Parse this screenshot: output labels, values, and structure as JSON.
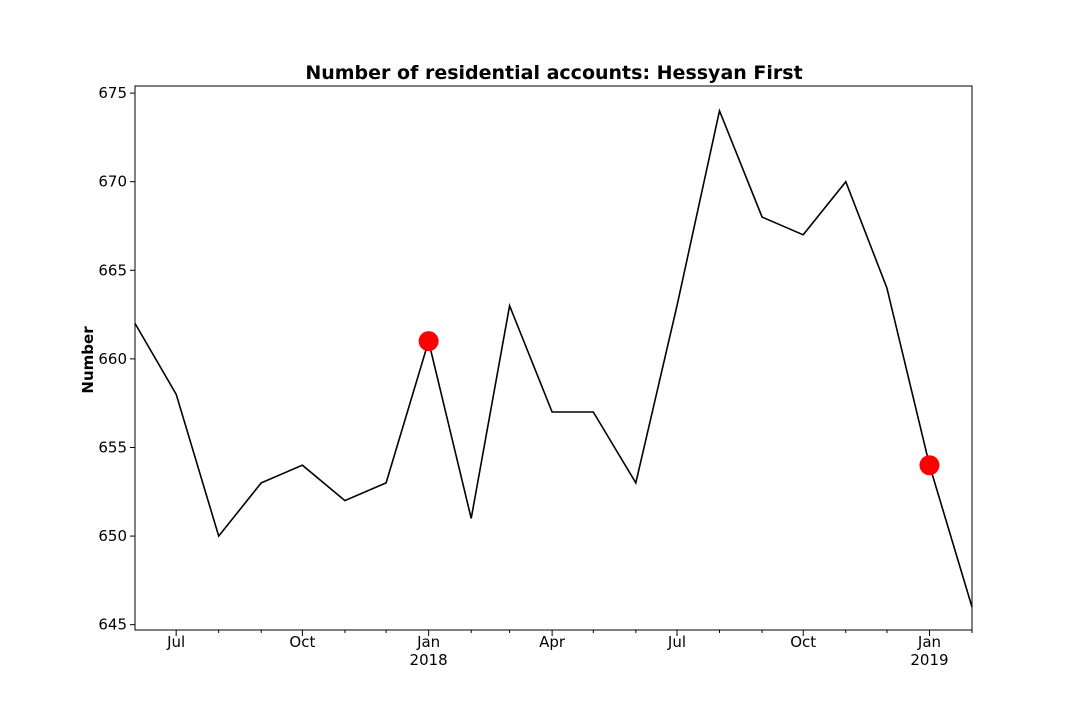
{
  "chart_data": {
    "type": "line",
    "title": "Number of residential accounts: Hessyan First",
    "xlabel": "",
    "ylabel": "Number",
    "xlim": [
      "2017-06-01",
      "2019-02-01"
    ],
    "ylim": [
      644.7,
      675.4
    ],
    "grid": false,
    "y_ticks": [
      645,
      650,
      655,
      660,
      665,
      670,
      675
    ],
    "x_ticks": [
      {
        "date": "2017-07-01",
        "label": "Jul",
        "sublabel": ""
      },
      {
        "date": "2017-10-01",
        "label": "Oct",
        "sublabel": ""
      },
      {
        "date": "2018-01-01",
        "label": "Jan",
        "sublabel": "2018"
      },
      {
        "date": "2018-04-01",
        "label": "Apr",
        "sublabel": ""
      },
      {
        "date": "2018-07-01",
        "label": "Jul",
        "sublabel": ""
      },
      {
        "date": "2018-10-01",
        "label": "Oct",
        "sublabel": ""
      },
      {
        "date": "2019-01-01",
        "label": "Jan",
        "sublabel": "2019"
      }
    ],
    "x_minor_ticks": [
      "2017-08-01",
      "2017-09-01",
      "2017-11-01",
      "2017-12-01",
      "2018-02-01",
      "2018-03-01",
      "2018-05-01",
      "2018-06-01",
      "2018-08-01",
      "2018-09-01",
      "2018-11-01",
      "2018-12-01",
      "2019-02-01"
    ],
    "series": [
      {
        "name": "",
        "color": "#000000",
        "x": [
          "2017-06-01",
          "2017-07-01",
          "2017-08-01",
          "2017-09-01",
          "2017-10-01",
          "2017-11-01",
          "2017-12-01",
          "2018-01-01",
          "2018-02-01",
          "2018-03-01",
          "2018-04-01",
          "2018-05-01",
          "2018-06-01",
          "2018-07-01",
          "2018-08-01",
          "2018-09-01",
          "2018-10-01",
          "2018-11-01",
          "2018-12-01",
          "2019-01-01",
          "2019-02-01"
        ],
        "y": [
          662,
          658,
          650,
          653,
          654,
          652,
          653,
          661,
          651,
          663,
          657,
          657,
          653,
          663,
          674,
          668,
          667,
          670,
          664,
          654,
          646
        ]
      }
    ],
    "highlights": {
      "color": "#ff0000",
      "points": [
        {
          "x": "2018-01-01",
          "y": 661
        },
        {
          "x": "2019-01-01",
          "y": 654
        }
      ]
    }
  }
}
